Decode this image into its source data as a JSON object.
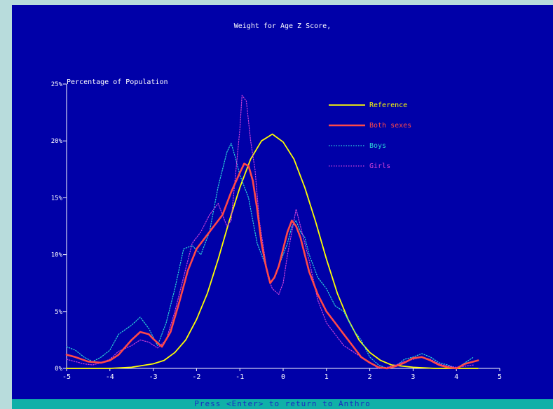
{
  "status_bar": {
    "text": "Press <Enter> to return to Anthro"
  },
  "colors": {
    "background": "#0000a8",
    "axis": "#ffffff",
    "reference": "#ffff00",
    "both_sexes": "#ff4848",
    "boys": "#2cd8d8",
    "girls": "#d040d8",
    "status_bar": "#10b0a8"
  },
  "chart_data": {
    "type": "line",
    "title": "Weight for Age Z Score,",
    "ylabel": "Percentage of Population",
    "xlabel": "",
    "xlim": [
      -5,
      5
    ],
    "ylim": [
      0,
      25
    ],
    "x_ticks": [
      "-5",
      "-4",
      "-3",
      "-2",
      "-1",
      "0",
      "1",
      "2",
      "3",
      "4",
      "5"
    ],
    "y_ticks": [
      "0%",
      "5%",
      "10%",
      "15%",
      "20%",
      "25%"
    ],
    "legend_position": "top-right",
    "series": [
      {
        "name": "Reference",
        "color": "#ffff00",
        "style": "solid",
        "x": [
          -5,
          -4.5,
          -4,
          -3.5,
          -3,
          -2.75,
          -2.5,
          -2.25,
          -2,
          -1.75,
          -1.5,
          -1.25,
          -1,
          -0.75,
          -0.5,
          -0.25,
          0,
          0.25,
          0.5,
          0.75,
          1,
          1.25,
          1.5,
          1.75,
          2,
          2.25,
          2.5,
          3,
          3.5,
          4,
          4.5
        ],
        "values": [
          0.0,
          0.0,
          0.0,
          0.1,
          0.4,
          0.7,
          1.4,
          2.5,
          4.3,
          6.6,
          9.6,
          12.9,
          15.9,
          18.4,
          20.0,
          20.6,
          19.9,
          18.4,
          15.9,
          12.9,
          9.6,
          6.6,
          4.3,
          2.5,
          1.4,
          0.7,
          0.3,
          0.1,
          0.0,
          0.0,
          0.0
        ]
      },
      {
        "name": "Both sexes",
        "color": "#ff4848",
        "style": "solid",
        "x": [
          -5,
          -4.8,
          -4.5,
          -4.2,
          -4,
          -3.8,
          -3.5,
          -3.3,
          -3.1,
          -3,
          -2.8,
          -2.6,
          -2.4,
          -2.2,
          -2,
          -1.8,
          -1.6,
          -1.4,
          -1.2,
          -1,
          -0.9,
          -0.8,
          -0.7,
          -0.6,
          -0.5,
          -0.4,
          -0.3,
          -0.2,
          -0.1,
          0,
          0.1,
          0.2,
          0.3,
          0.4,
          0.5,
          0.6,
          0.8,
          1,
          1.2,
          1.4,
          1.6,
          1.8,
          2,
          2.2,
          2.4,
          2.6,
          2.8,
          3,
          3.2,
          3.4,
          3.6,
          3.8,
          4,
          4.2,
          4.5
        ],
        "values": [
          1.2,
          1.0,
          0.6,
          0.5,
          0.7,
          1.2,
          2.5,
          3.2,
          3.0,
          2.6,
          1.9,
          3.2,
          5.8,
          8.6,
          10.5,
          11.5,
          12.5,
          13.5,
          15.5,
          17.2,
          18.0,
          17.8,
          16.5,
          14.0,
          11.0,
          9.0,
          7.5,
          8.0,
          9.0,
          10.5,
          12.0,
          13.0,
          12.5,
          11.5,
          10.0,
          8.5,
          6.5,
          5.0,
          4.0,
          3.0,
          2.0,
          1.0,
          0.5,
          0.1,
          0.0,
          0.2,
          0.5,
          0.9,
          1.0,
          0.7,
          0.3,
          0.1,
          0.0,
          0.4,
          0.7
        ]
      },
      {
        "name": "Boys",
        "color": "#2cd8d8",
        "style": "dotted",
        "x": [
          -5,
          -4.8,
          -4.6,
          -4.4,
          -4.2,
          -4,
          -3.8,
          -3.5,
          -3.3,
          -3.1,
          -2.9,
          -2.7,
          -2.5,
          -2.3,
          -2.1,
          -1.9,
          -1.7,
          -1.5,
          -1.3,
          -1.2,
          -1.1,
          -1.0,
          -0.9,
          -0.8,
          -0.7,
          -0.6,
          -0.5,
          -0.4,
          -0.3,
          -0.2,
          -0.1,
          0,
          0.1,
          0.2,
          0.3,
          0.4,
          0.5,
          0.6,
          0.8,
          1.0,
          1.2,
          1.4,
          1.6,
          1.8,
          2.0,
          2.2,
          2.4,
          2.6,
          2.8,
          3.0,
          3.2,
          3.4,
          3.6,
          3.8,
          4.0,
          4.2,
          4.4
        ],
        "values": [
          1.9,
          1.6,
          1.0,
          0.6,
          1.0,
          1.6,
          3.0,
          3.8,
          4.5,
          3.5,
          2.0,
          4.0,
          7.0,
          10.5,
          10.8,
          10.0,
          12.0,
          16.0,
          19.0,
          19.8,
          18.5,
          17.0,
          16.0,
          15.0,
          13.0,
          11.0,
          10.0,
          9.0,
          7.5,
          8.0,
          9.0,
          10.0,
          11.0,
          12.5,
          13.0,
          12.0,
          11.5,
          10.0,
          8.0,
          7.0,
          5.5,
          5.0,
          3.5,
          2.5,
          1.0,
          0.3,
          0.0,
          0.2,
          0.8,
          1.0,
          1.3,
          1.0,
          0.5,
          0.3,
          0.0,
          0.5,
          1.0
        ]
      },
      {
        "name": "Girls",
        "color": "#d040d8",
        "style": "dotted",
        "x": [
          -5,
          -4.8,
          -4.6,
          -4.4,
          -4.2,
          -4,
          -3.8,
          -3.5,
          -3.3,
          -3.1,
          -2.9,
          -2.7,
          -2.5,
          -2.3,
          -2.1,
          -1.9,
          -1.7,
          -1.5,
          -1.3,
          -1.2,
          -1.1,
          -1.0,
          -0.95,
          -0.85,
          -0.75,
          -0.65,
          -0.55,
          -0.45,
          -0.35,
          -0.25,
          -0.1,
          0,
          0.1,
          0.2,
          0.3,
          0.4,
          0.5,
          0.6,
          0.8,
          1.0,
          1.2,
          1.4,
          1.6,
          1.8,
          2.0,
          2.2,
          2.4,
          2.6,
          2.8,
          3.0,
          3.2,
          3.4,
          3.6,
          3.8,
          4.0,
          4.2,
          4.4
        ],
        "values": [
          0.8,
          0.6,
          0.4,
          0.3,
          0.5,
          0.8,
          1.5,
          2.0,
          2.5,
          2.3,
          1.8,
          2.5,
          5.0,
          8.0,
          11.0,
          12.0,
          13.5,
          14.5,
          12.5,
          13.0,
          17.0,
          21.0,
          24.0,
          23.5,
          20.0,
          17.5,
          13.0,
          10.5,
          8.0,
          7.0,
          6.5,
          7.5,
          10.0,
          12.0,
          14.0,
          12.5,
          11.0,
          9.5,
          6.0,
          4.0,
          3.0,
          2.0,
          1.5,
          1.0,
          0.5,
          0.0,
          0.1,
          0.3,
          0.6,
          0.8,
          1.0,
          0.8,
          0.4,
          0.2,
          0.1,
          0.2,
          0.3
        ]
      }
    ]
  }
}
